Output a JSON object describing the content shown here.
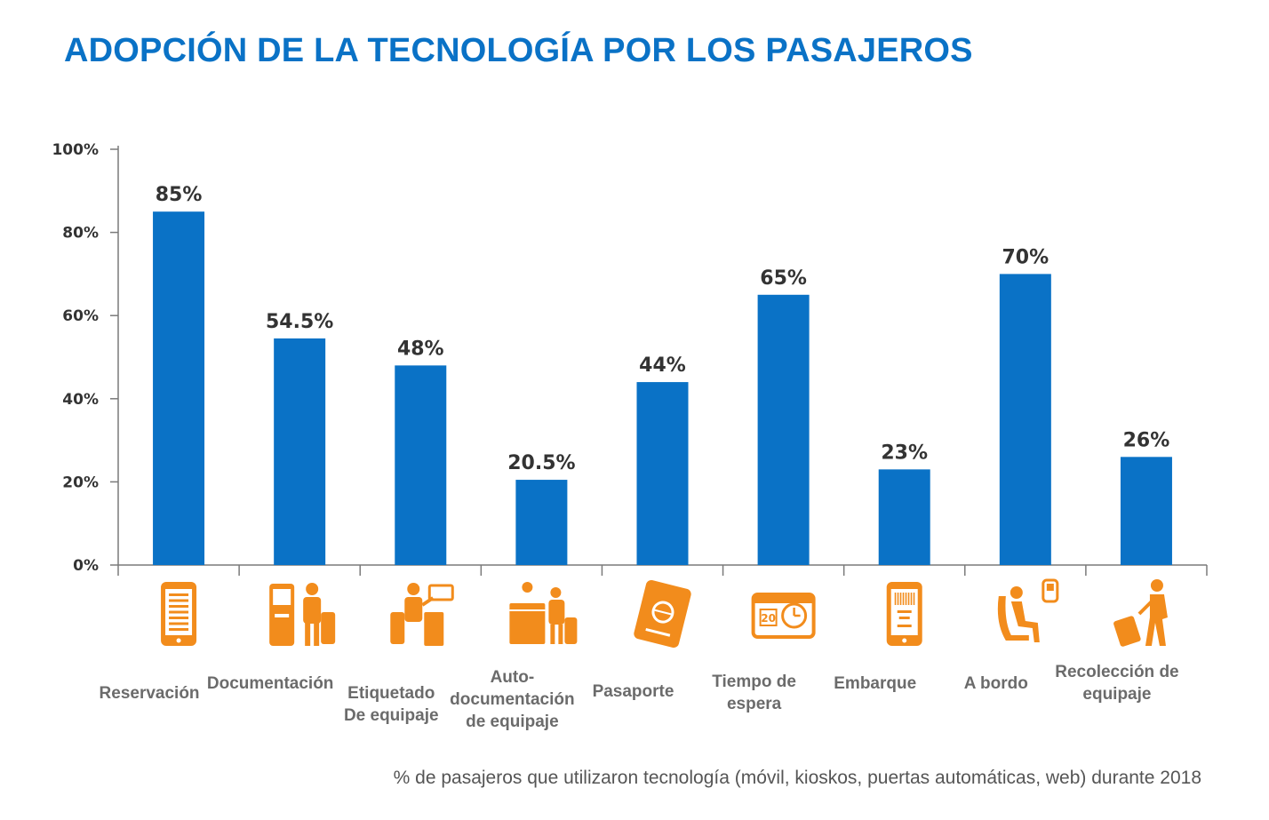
{
  "title": "ADOPCIÓN DE LA TECNOLOGÍA POR LOS PASAJEROS",
  "footnote": "% de pasajeros que utilizaron tecnología (móvil, kioskos, puertas automáticas, web) durante 2018",
  "colors": {
    "title": "#0a72c6",
    "bar": "#0a72c6",
    "icon": "#f28c1c",
    "label": "#6b6b6b",
    "axis": "#7a7a7a"
  },
  "chart_data": {
    "type": "bar",
    "categories": [
      "Reservación",
      "Documentación",
      "Etiquetado De equipaje",
      "Auto-documentación de equipaje",
      "Pasaporte",
      "Tiempo de espera",
      "Embarque",
      "A bordo",
      "Recolección de equipaje"
    ],
    "category_lines": [
      [
        "Reservación"
      ],
      [
        "Documentación"
      ],
      [
        "Etiquetado",
        "De equipaje"
      ],
      [
        "Auto-",
        "documentación",
        "de equipaje"
      ],
      [
        "Pasaporte"
      ],
      [
        "Tiempo de",
        "espera"
      ],
      [
        "Embarque"
      ],
      [
        "A bordo"
      ],
      [
        "Recolección de",
        "equipaje"
      ]
    ],
    "values": [
      85,
      54.5,
      48,
      20.5,
      44,
      65,
      23,
      70,
      26
    ],
    "value_labels": [
      "85%",
      "54.5%",
      "48%",
      "20.5%",
      "44%",
      "65%",
      "23%",
      "70%",
      "26%"
    ],
    "yticks": [
      "0%",
      "20%",
      "40%",
      "60%",
      "80%",
      "100%"
    ],
    "ylim": [
      0,
      100
    ],
    "icons": [
      "smartphone-icon",
      "kiosk-icon",
      "baggage-tag-icon",
      "bag-drop-icon",
      "passport-icon",
      "wait-time-icon",
      "boarding-pass-icon",
      "onboard-icon",
      "baggage-claim-icon"
    ],
    "grid": false,
    "legend": "none"
  }
}
